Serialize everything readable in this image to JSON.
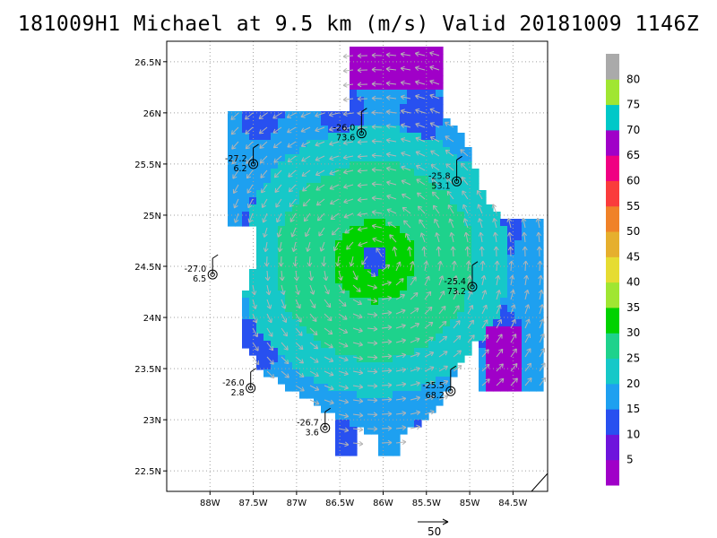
{
  "title": "181009H1 Michael at 9.5 km (m/s) Valid 20181009 1146Z",
  "chart_data": {
    "type": "heatmap",
    "title": "181009H1 Michael at 9.5 km (m/s) Valid 20181009 1146Z",
    "units": "m/s",
    "x_ticks": [
      {
        "value": -88.0,
        "label": "88W"
      },
      {
        "value": -87.5,
        "label": "87.5W"
      },
      {
        "value": -87.0,
        "label": "87W"
      },
      {
        "value": -86.5,
        "label": "86.5W"
      },
      {
        "value": -86.0,
        "label": "86W"
      },
      {
        "value": -85.5,
        "label": "85.5W"
      },
      {
        "value": -85.0,
        "label": "85W"
      },
      {
        "value": -84.5,
        "label": "84.5W"
      }
    ],
    "y_ticks": [
      {
        "value": 22.5,
        "label": "22.5N"
      },
      {
        "value": 23.0,
        "label": "23N"
      },
      {
        "value": 23.5,
        "label": "23.5N"
      },
      {
        "value": 24.0,
        "label": "24N"
      },
      {
        "value": 24.5,
        "label": "24.5N"
      },
      {
        "value": 25.0,
        "label": "25N"
      },
      {
        "value": 25.5,
        "label": "25.5N"
      },
      {
        "value": 26.0,
        "label": "26N"
      },
      {
        "value": 26.5,
        "label": "26.5N"
      }
    ],
    "xlim": [
      -88.5,
      -84.1
    ],
    "ylim": [
      22.3,
      26.7
    ],
    "grid": true,
    "colorbar": {
      "labels": [
        "5",
        "10",
        "15",
        "20",
        "25",
        "30",
        "35",
        "40",
        "45",
        "50",
        "55",
        "60",
        "65",
        "70",
        "75",
        "80"
      ],
      "colors": [
        "#a000c8",
        "#6e14dc",
        "#2850f0",
        "#1ea0f0",
        "#16c8c8",
        "#1ed28c",
        "#00d200",
        "#a0e632",
        "#e6dc32",
        "#e6af2d",
        "#f08228",
        "#fa3c3c",
        "#f00082",
        "#a000c8",
        "#00c8c8",
        "#a0e632"
      ],
      "top_color": "#aaaaaa"
    },
    "wind_center": {
      "lon": -86.1,
      "lat": 24.55
    },
    "dropsondes": [
      {
        "lon": -86.25,
        "lat": 25.8,
        "temp": "-26.0",
        "wind": "73.6"
      },
      {
        "lon": -87.5,
        "lat": 25.5,
        "temp": "-27.2",
        "wind": "6.2"
      },
      {
        "lon": -85.15,
        "lat": 25.33,
        "temp": "-25.8",
        "wind": "53.1"
      },
      {
        "lon": -87.97,
        "lat": 24.42,
        "temp": "-27.0",
        "wind": "6.5"
      },
      {
        "lon": -84.97,
        "lat": 24.3,
        "temp": "-25.4",
        "wind": "73.2"
      },
      {
        "lon": -87.53,
        "lat": 23.31,
        "temp": "-26.0",
        "wind": "2.8"
      },
      {
        "lon": -85.22,
        "lat": 23.28,
        "temp": "-25.5",
        "wind": "68.2"
      },
      {
        "lon": -86.67,
        "lat": 22.92,
        "temp": "-26.7",
        "wind": "3.6"
      }
    ],
    "reference_vector": {
      "label": "50"
    }
  }
}
